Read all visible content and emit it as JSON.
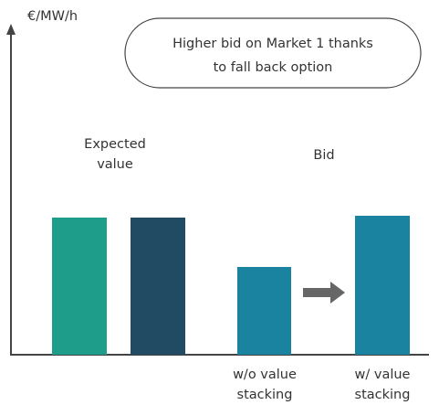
{
  "axis": {
    "y_label": "€/MW/h"
  },
  "callout": {
    "lines": [
      "Higher bid on Market 1 thanks",
      "to fall back option"
    ]
  },
  "groups": [
    {
      "label_lines": [
        "Expected",
        "value"
      ]
    },
    {
      "label_lines": [
        "Bid"
      ]
    }
  ],
  "bar_labels": [
    {
      "lines": [
        "w/o value",
        "stacking"
      ]
    },
    {
      "lines": [
        "w/ value",
        "stacking"
      ]
    }
  ]
}
